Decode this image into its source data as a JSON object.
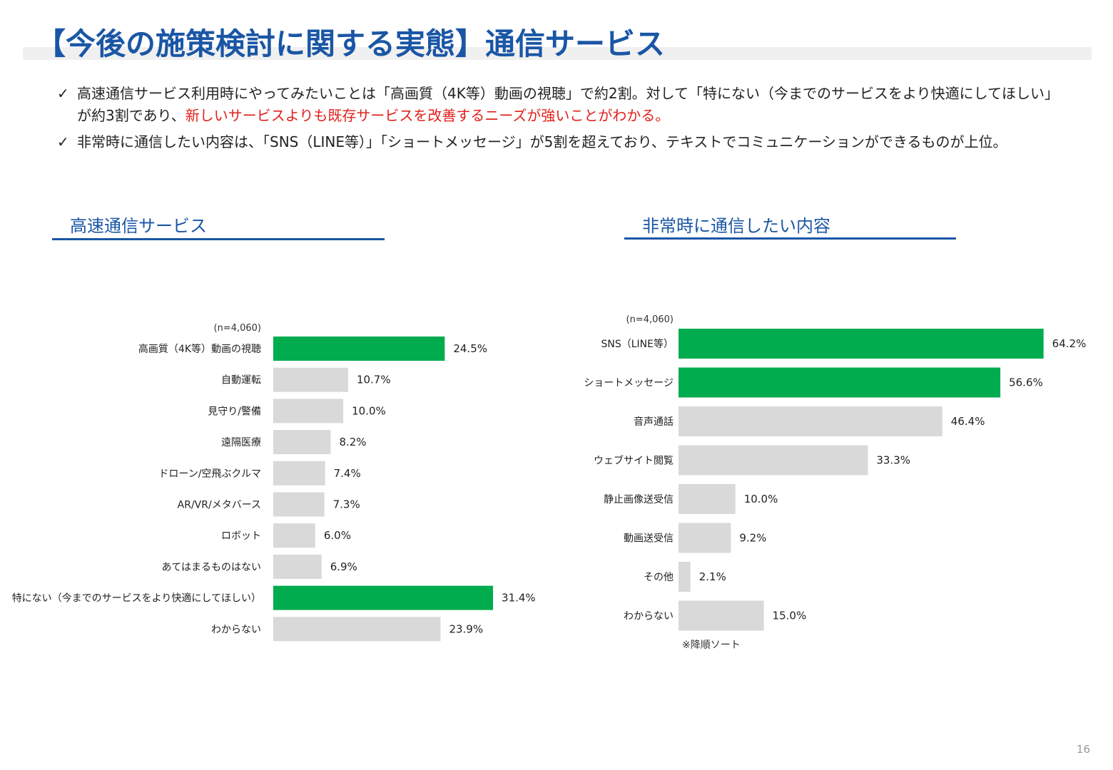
{
  "title": "【今後の施策検討に関する実態】通信サービス",
  "bullets": [
    {
      "check": "✓",
      "parts": [
        {
          "text": "高速通信サービス利用時にやってみたいことは「高画質（4K等）動画の視聴」で約2割。対して「特にない（今までのサービスをより快適にしてほしい」が約3割であり、",
          "highlight": false
        },
        {
          "text": "新しいサービスよりも既存サービスを改善するニーズが強いことがわかる。",
          "highlight": true
        }
      ]
    },
    {
      "check": "✓",
      "parts": [
        {
          "text": "非常時に通信したい内容は、「SNS（LINE等）」「ショートメッセージ」が5割を超えており、テキストでコミュニケーションができるものが上位。",
          "highlight": false
        }
      ]
    }
  ],
  "colors": {
    "accent": "#1a56a5",
    "highlight_bar": "#00ac4e",
    "default_bar": "#d9d9d9",
    "highlight_text": "#e0201b"
  },
  "left_section_title": "高速通信サービス",
  "right_section_title": "非常時に通信したい内容",
  "right_sort_note": "※降順ソート",
  "page_number": "16",
  "chart_data": [
    {
      "type": "bar",
      "orientation": "horizontal",
      "title": "高速通信サービス",
      "n_label": "(n=4,060)",
      "unit": "%",
      "categories": [
        "高画質（4K等）動画の視聴",
        "自動運転",
        "見守り/警備",
        "遠隔医療",
        "ドローン/空飛ぶクルマ",
        "AR/VR/メタバース",
        "ロボット",
        "あてはまるものはない",
        "特にない（今までのサービスをより快適にしてほしい）",
        "わからない"
      ],
      "values": [
        24.5,
        10.7,
        10.0,
        8.2,
        7.4,
        7.3,
        6.0,
        6.9,
        31.4,
        23.9
      ],
      "value_labels": [
        "24.5%",
        "10.7%",
        "10.0%",
        "8.2%",
        "7.4%",
        "7.3%",
        "6.0%",
        "6.9%",
        "31.4%",
        "23.9%"
      ],
      "highlighted": [
        true,
        false,
        false,
        false,
        false,
        false,
        false,
        false,
        true,
        false
      ]
    },
    {
      "type": "bar",
      "orientation": "horizontal",
      "title": "非常時に通信したい内容",
      "n_label": "(n=4,060)",
      "unit": "%",
      "categories": [
        "SNS（LINE等）",
        "ショートメッセージ",
        "音声通話",
        "ウェブサイト閲覧",
        "静止画像送受信",
        "動画送受信",
        "その他",
        "わからない"
      ],
      "values": [
        64.2,
        56.6,
        46.4,
        33.3,
        10.0,
        9.2,
        2.1,
        15.0
      ],
      "value_labels": [
        "64.2%",
        "56.6%",
        "46.4%",
        "33.3%",
        "10.0%",
        "9.2%",
        "2.1%",
        "15.0%"
      ],
      "highlighted": [
        true,
        true,
        false,
        false,
        false,
        false,
        false,
        false
      ]
    }
  ]
}
